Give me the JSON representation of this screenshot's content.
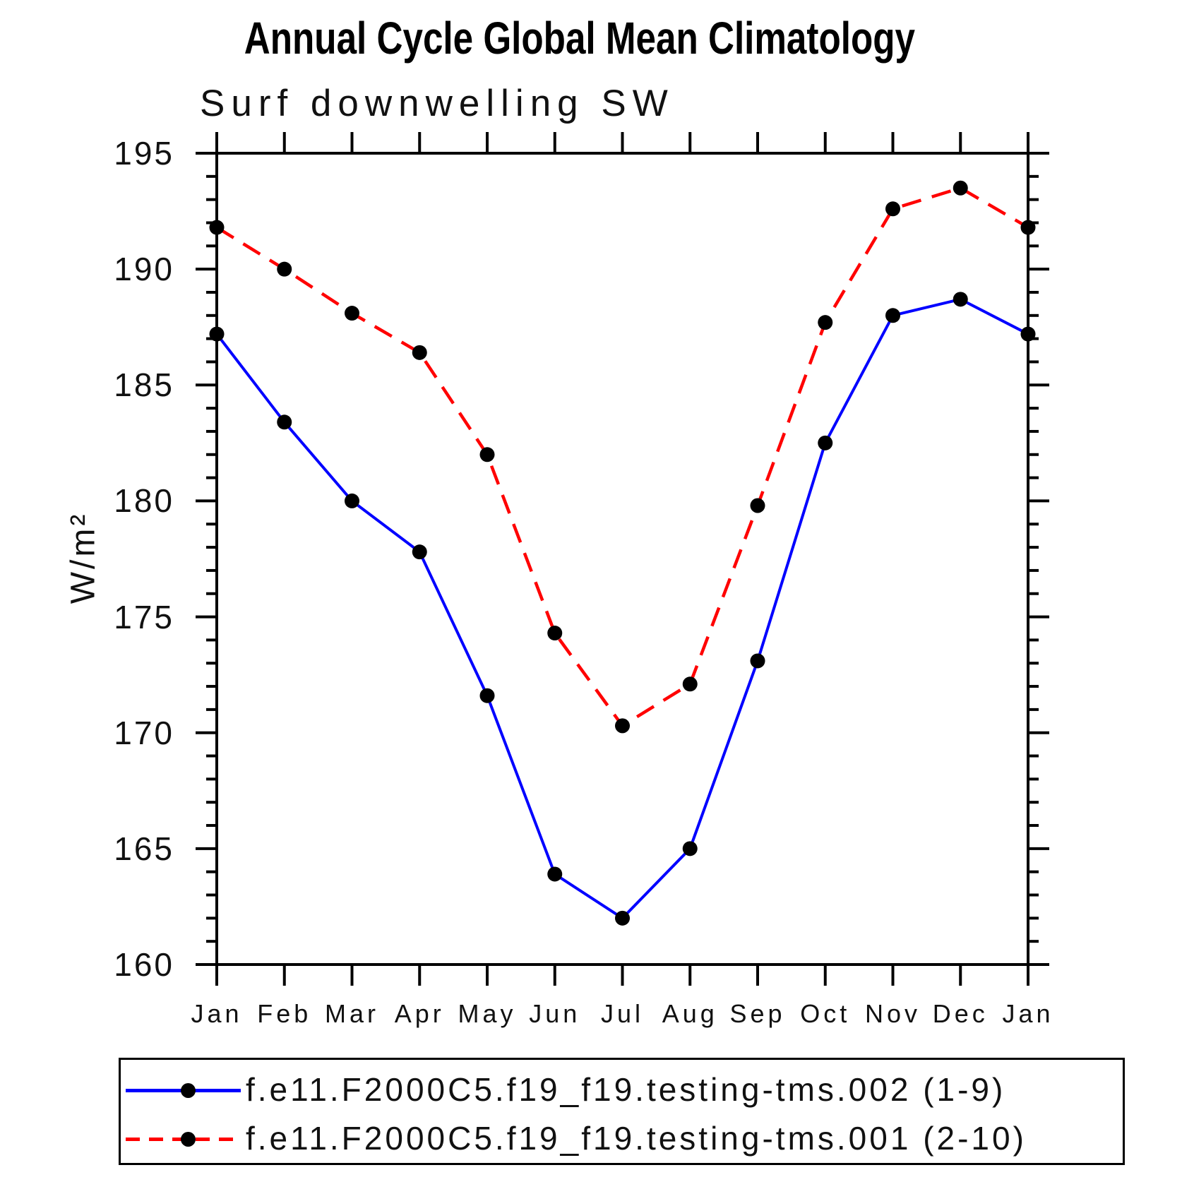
{
  "page": {
    "title": "Annual Cycle Global Mean Climatology",
    "subtitle": "Surf downwelling SW"
  },
  "chart_data": {
    "type": "line",
    "title": "Annual Cycle Global Mean Climatology",
    "subtitle": "Surf downwelling SW",
    "xlabel": "",
    "ylabel": "W/m²",
    "ylim": [
      160,
      195
    ],
    "yticks_major": [
      160,
      165,
      170,
      175,
      180,
      185,
      190,
      195
    ],
    "ytick_minor_step": 1,
    "grid": false,
    "legend_position": "bottom",
    "categories": [
      "Jan",
      "Feb",
      "Mar",
      "Apr",
      "May",
      "Jun",
      "Jul",
      "Aug",
      "Sep",
      "Oct",
      "Nov",
      "Dec",
      "Jan"
    ],
    "series": [
      {
        "name": "f.e11.F2000C5.f19_f19.testing-tms.002 (1-9)",
        "color": "#0000ff",
        "line_style": "solid",
        "marker": "circle",
        "marker_color": "#000000",
        "values": [
          187.2,
          183.4,
          180.0,
          177.8,
          171.6,
          163.9,
          162.0,
          165.0,
          173.1,
          182.5,
          188.0,
          188.7,
          187.2
        ]
      },
      {
        "name": "f.e11.F2000C5.f19_f19.testing-tms.001 (2-10)",
        "color": "#ff0000",
        "line_style": "dashed",
        "marker": "circle",
        "marker_color": "#000000",
        "values": [
          191.8,
          190.0,
          188.1,
          186.4,
          182.0,
          174.3,
          170.3,
          172.1,
          179.8,
          187.7,
          192.6,
          193.5,
          191.8
        ]
      }
    ]
  }
}
